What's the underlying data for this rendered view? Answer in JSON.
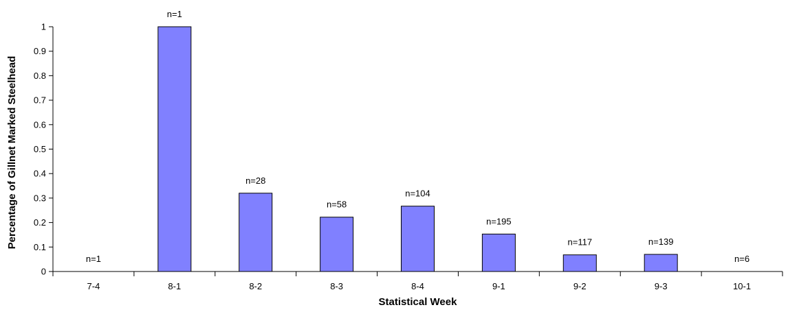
{
  "chart_data": {
    "type": "bar",
    "title": "",
    "xlabel": "Statistical Week",
    "ylabel": "Percentage of Gillnet Marked Steelhead",
    "categories": [
      "7-4",
      "8-1",
      "8-2",
      "8-3",
      "8-4",
      "9-1",
      "9-2",
      "9-3",
      "10-1"
    ],
    "values": [
      0,
      1.0,
      0.32,
      0.222,
      0.267,
      0.153,
      0.068,
      0.07,
      0
    ],
    "annotations": [
      "n=1",
      "n=1",
      "n=28",
      "n=58",
      "n=104",
      "n=195",
      "n=117",
      "n=139",
      "n=6"
    ],
    "ylim": [
      0,
      1
    ],
    "yticks": [
      "0",
      "0.1",
      "0.2",
      "0.3",
      "0.4",
      "0.5",
      "0.6",
      "0.7",
      "0.8",
      "0.9",
      "1"
    ],
    "grid": false,
    "legend": "none",
    "bar_color": "#8080ff",
    "bar_edge_color": "#000000"
  }
}
